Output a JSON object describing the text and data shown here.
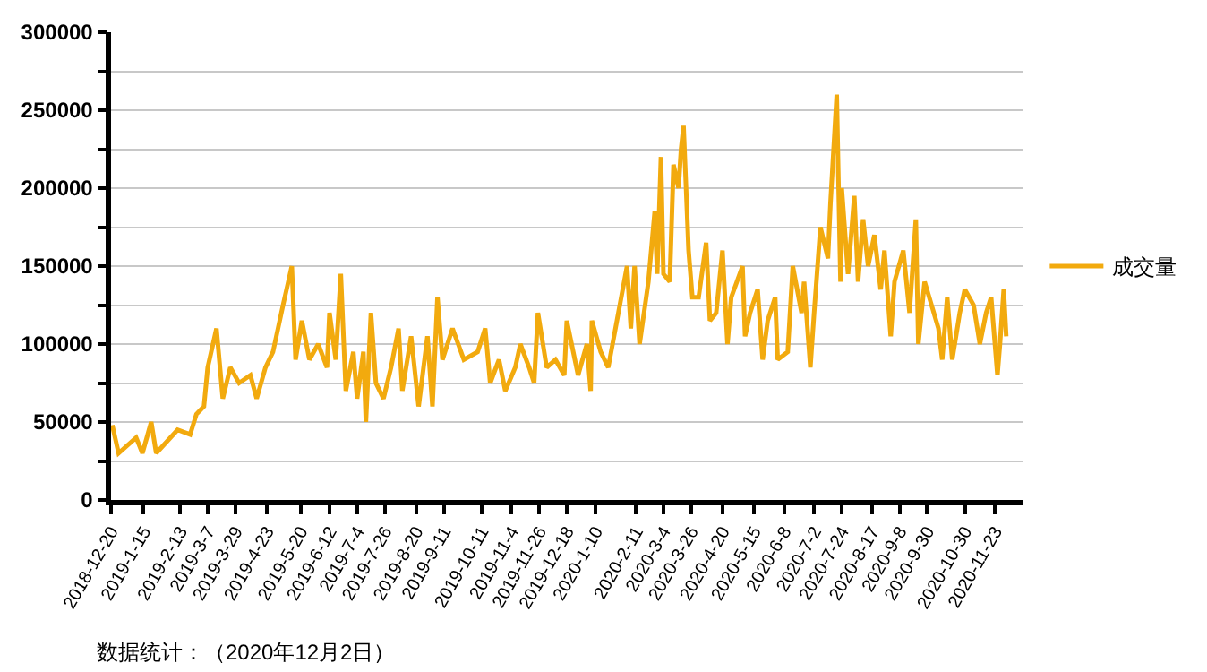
{
  "chart_data": {
    "type": "line",
    "annotations": [
      "数据统计：（2020年12月2日）"
    ],
    "x": [
      "2018-12-21",
      "2018-12-26",
      "2019-01-09",
      "2019-01-14",
      "2019-01-21",
      "2019-01-25",
      "2019-02-11",
      "2019-02-21",
      "2019-02-26",
      "2019-03-04",
      "2019-03-07",
      "2019-03-14",
      "2019-03-19",
      "2019-03-25",
      "2019-04-01",
      "2019-04-10",
      "2019-04-15",
      "2019-04-22",
      "2019-04-28",
      "2019-05-06",
      "2019-05-13",
      "2019-05-16",
      "2019-05-21",
      "2019-05-27",
      "2019-06-03",
      "2019-06-10",
      "2019-06-12",
      "2019-06-17",
      "2019-06-21",
      "2019-06-25",
      "2019-07-01",
      "2019-07-04",
      "2019-07-09",
      "2019-07-11",
      "2019-07-15",
      "2019-07-19",
      "2019-07-25",
      "2019-07-31",
      "2019-08-06",
      "2019-08-09",
      "2019-08-16",
      "2019-08-22",
      "2019-08-29",
      "2019-09-02",
      "2019-09-06",
      "2019-09-10",
      "2019-09-18",
      "2019-09-27",
      "2019-10-08",
      "2019-10-14",
      "2019-10-18",
      "2019-10-25",
      "2019-10-30",
      "2019-11-07",
      "2019-11-11",
      "2019-11-18",
      "2019-11-22",
      "2019-11-25",
      "2019-12-02",
      "2019-12-09",
      "2019-12-16",
      "2019-12-18",
      "2019-12-27",
      "2020-01-03",
      "2020-01-06",
      "2020-01-07",
      "2020-01-14",
      "2020-01-20",
      "2020-02-04",
      "2020-02-07",
      "2020-02-10",
      "2020-02-14",
      "2020-02-21",
      "2020-02-26",
      "2020-02-28",
      "2020-03-02",
      "2020-03-04",
      "2020-03-09",
      "2020-03-12",
      "2020-03-16",
      "2020-03-18",
      "2020-03-20",
      "2020-03-24",
      "2020-03-27",
      "2020-04-01",
      "2020-04-07",
      "2020-04-10",
      "2020-04-15",
      "2020-04-20",
      "2020-04-24",
      "2020-04-27",
      "2020-05-06",
      "2020-05-08",
      "2020-05-12",
      "2020-05-18",
      "2020-05-22",
      "2020-05-26",
      "2020-06-01",
      "2020-06-03",
      "2020-06-11",
      "2020-06-15",
      "2020-06-22",
      "2020-06-24",
      "2020-06-29",
      "2020-07-02",
      "2020-07-07",
      "2020-07-13",
      "2020-07-15",
      "2020-07-20",
      "2020-07-23",
      "2020-07-24",
      "2020-07-29",
      "2020-08-03",
      "2020-08-06",
      "2020-08-10",
      "2020-08-14",
      "2020-08-19",
      "2020-08-24",
      "2020-08-27",
      "2020-09-01",
      "2020-09-04",
      "2020-09-11",
      "2020-09-16",
      "2020-09-21",
      "2020-09-23",
      "2020-09-28",
      "2020-10-09",
      "2020-10-12",
      "2020-10-16",
      "2020-10-20",
      "2020-10-26",
      "2020-10-30",
      "2020-11-06",
      "2020-11-11",
      "2020-11-16",
      "2020-11-20",
      "2020-11-25",
      "2020-11-27",
      "2020-11-30",
      "2020-12-02"
    ],
    "series": [
      {
        "name": "成交量",
        "color": "#f2aa0e",
        "values": [
          48000,
          30000,
          40000,
          30000,
          50000,
          30000,
          45000,
          42000,
          55000,
          60000,
          85000,
          110000,
          65000,
          85000,
          75000,
          80000,
          65000,
          85000,
          95000,
          125000,
          150000,
          90000,
          115000,
          90000,
          100000,
          85000,
          120000,
          90000,
          145000,
          70000,
          95000,
          65000,
          95000,
          50000,
          120000,
          75000,
          65000,
          85000,
          110000,
          70000,
          105000,
          60000,
          105000,
          60000,
          130000,
          90000,
          110000,
          90000,
          95000,
          110000,
          75000,
          90000,
          70000,
          85000,
          100000,
          85000,
          75000,
          120000,
          85000,
          90000,
          80000,
          115000,
          80000,
          100000,
          70000,
          115000,
          95000,
          85000,
          150000,
          110000,
          150000,
          100000,
          140000,
          185000,
          145000,
          220000,
          145000,
          140000,
          215000,
          200000,
          225000,
          240000,
          160000,
          130000,
          130000,
          165000,
          115000,
          120000,
          160000,
          100000,
          130000,
          150000,
          105000,
          120000,
          135000,
          90000,
          115000,
          130000,
          90000,
          95000,
          150000,
          120000,
          140000,
          85000,
          120000,
          175000,
          155000,
          190000,
          260000,
          140000,
          200000,
          145000,
          195000,
          140000,
          180000,
          150000,
          170000,
          135000,
          160000,
          105000,
          140000,
          160000,
          120000,
          180000,
          100000,
          140000,
          110000,
          90000,
          130000,
          90000,
          120000,
          135000,
          125000,
          100000,
          120000,
          130000,
          80000,
          100000,
          135000,
          105000
        ]
      }
    ],
    "xlim": [
      "2018-12-20",
      "2020-12-15"
    ],
    "xticks": [
      {
        "value": "2018-12-20",
        "label": "2018-12-20"
      },
      {
        "value": "2019-01-15",
        "label": "2019-1-15"
      },
      {
        "value": "2019-02-13",
        "label": "2019-2-13"
      },
      {
        "value": "2019-03-07",
        "label": "2019-3-7"
      },
      {
        "value": "2019-03-29",
        "label": "2019-3-29"
      },
      {
        "value": "2019-04-23",
        "label": "2019-4-23"
      },
      {
        "value": "2019-05-20",
        "label": "2019-5-20"
      },
      {
        "value": "2019-06-12",
        "label": "2019-6-12"
      },
      {
        "value": "2019-07-04",
        "label": "2019-7-4"
      },
      {
        "value": "2019-07-26",
        "label": "2019-7-26"
      },
      {
        "value": "2019-08-20",
        "label": "2019-8-20"
      },
      {
        "value": "2019-09-11",
        "label": "2019-9-11"
      },
      {
        "value": "2019-10-11",
        "label": "2019-10-11"
      },
      {
        "value": "2019-11-04",
        "label": "2019-11-4"
      },
      {
        "value": "2019-11-26",
        "label": "2019-11-26"
      },
      {
        "value": "2019-12-18",
        "label": "2019-12-18"
      },
      {
        "value": "2020-01-10",
        "label": "2020-1-10"
      },
      {
        "value": "2020-02-11",
        "label": "2020-2-11"
      },
      {
        "value": "2020-03-04",
        "label": "2020-3-4"
      },
      {
        "value": "2020-03-26",
        "label": "2020-3-26"
      },
      {
        "value": "2020-04-20",
        "label": "2020-4-20"
      },
      {
        "value": "2020-05-15",
        "label": "2020-5-15"
      },
      {
        "value": "2020-06-08",
        "label": "2020-6-8"
      },
      {
        "value": "2020-07-02",
        "label": "2020-7-2"
      },
      {
        "value": "2020-07-24",
        "label": "2020-7-24"
      },
      {
        "value": "2020-08-17",
        "label": "2020-8-17"
      },
      {
        "value": "2020-09-08",
        "label": "2020-9-8"
      },
      {
        "value": "2020-09-30",
        "label": "2020-9-30"
      },
      {
        "value": "2020-10-30",
        "label": "2020-10-30"
      },
      {
        "value": "2020-11-23",
        "label": "2020-11-23"
      }
    ],
    "ylim": [
      0,
      300000
    ],
    "yticks": [
      0,
      {
        "value": 25000,
        "label": null
      },
      50000,
      {
        "value": 75000,
        "label": null
      },
      100000,
      {
        "value": 125000,
        "label": null
      },
      150000,
      {
        "value": 175000,
        "label": null
      },
      200000,
      {
        "value": 225000,
        "label": null
      },
      250000,
      {
        "value": 275000,
        "label": null
      },
      300000
    ],
    "grid": "y",
    "legend": "right",
    "marker": "none",
    "line_style": "solid"
  }
}
